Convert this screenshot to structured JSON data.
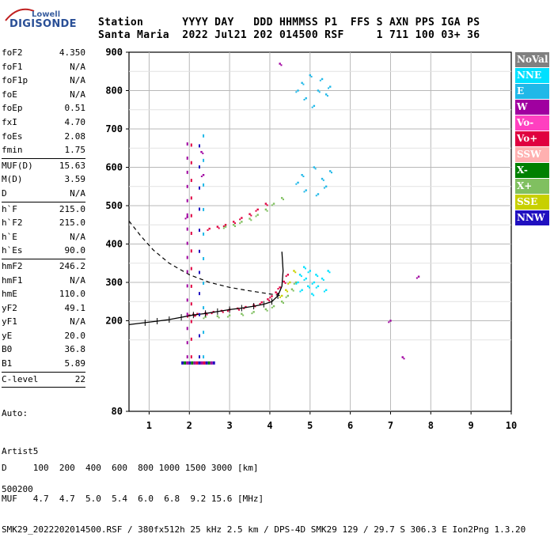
{
  "logo": {
    "line1": "Lowell",
    "line2": "DIGISONDE"
  },
  "header": {
    "line1": "Station      YYYY DAY   DDD HHMMSS P1  FFS S AXN PPS IGA PS",
    "line2": "Santa Maria  2022 Jul21 202 014500 RSF     1 711 100 03+ 36"
  },
  "params": [
    {
      "label": "foF2",
      "value": "4.350"
    },
    {
      "label": "foF1",
      "value": "N/A"
    },
    {
      "label": "foF1p",
      "value": "N/A"
    },
    {
      "label": "foE",
      "value": "N/A"
    },
    {
      "label": "foEp",
      "value": "0.51"
    },
    {
      "label": "fxI",
      "value": "4.70"
    },
    {
      "label": "foEs",
      "value": "2.08"
    },
    {
      "label": "fmin",
      "value": "1.75"
    },
    {
      "sep": true
    },
    {
      "label": "MUF(D)",
      "value": "15.63"
    },
    {
      "label": "M(D)",
      "value": "3.59"
    },
    {
      "label": "D",
      "value": "N/A"
    },
    {
      "sep": true
    },
    {
      "label": "h`F",
      "value": "215.0"
    },
    {
      "label": "h`F2",
      "value": "215.0"
    },
    {
      "label": "h`E",
      "value": "N/A"
    },
    {
      "label": "h`Es",
      "value": "90.0"
    },
    {
      "sep": true
    },
    {
      "label": "hmF2",
      "value": "246.2"
    },
    {
      "label": "hmF1",
      "value": "N/A"
    },
    {
      "label": "hmE",
      "value": "110.0"
    },
    {
      "label": "yF2",
      "value": "49.1"
    },
    {
      "label": "yF1",
      "value": "N/A"
    },
    {
      "label": "yE",
      "value": "20.0"
    },
    {
      "label": "B0",
      "value": "36.8"
    },
    {
      "label": "B1",
      "value": "5.89"
    },
    {
      "sep": true
    },
    {
      "label": "C-level",
      "value": "22"
    },
    {
      "sep": true
    }
  ],
  "auto": {
    "line1": "Auto:",
    "line2": "Artist5",
    "line3": "500200"
  },
  "legend": [
    {
      "label": "NoVal",
      "color": "#808080"
    },
    {
      "label": "NNE",
      "color": "#00e0ff"
    },
    {
      "label": "E",
      "color": "#20b8e8"
    },
    {
      "label": "W",
      "color": "#a000a0"
    },
    {
      "label": "Vo-",
      "color": "#ff40c0"
    },
    {
      "label": "Vo+",
      "color": "#e00040"
    },
    {
      "label": "SSW",
      "color": "#ffb0b0"
    },
    {
      "label": "X-",
      "color": "#008000"
    },
    {
      "label": "X+",
      "color": "#80c060"
    },
    {
      "label": "SSE",
      "color": "#c8d000"
    },
    {
      "label": "NNW",
      "color": "#2010c0"
    }
  ],
  "footer": {
    "line1": "D     100  200  400  600  800 1000 1500 3000 [km]",
    "line2": "MUF   4.7  4.7  5.0  5.4  6.0  6.8  9.2 15.6 [MHz]",
    "line3": "SMK29_2022202014500.RSF / 380fx512h 25 kHz 2.5 km / DPS-4D SMK29 129 / 29.7 S 306.3 E Ion2Png 1.3.20"
  },
  "chart_data": {
    "type": "scatter",
    "xlim": [
      0.5,
      10
    ],
    "ylim": [
      80,
      900
    ],
    "xticks": [
      1,
      2,
      3,
      4,
      5,
      6,
      7,
      8,
      9,
      10
    ],
    "yticks": [
      80,
      200,
      300,
      400,
      500,
      600,
      700,
      800,
      900
    ],
    "grid": true,
    "legend_position": "right",
    "profile_curve": {
      "x": [
        4.3,
        4.33,
        4.3,
        4.2,
        4.05,
        3.85,
        3.6,
        3.3,
        3.0,
        2.7,
        2.4,
        2.1,
        1.8,
        1.5,
        1.2,
        0.9,
        0.5
      ],
      "y": [
        380,
        330,
        290,
        265,
        250,
        243,
        238,
        233,
        229,
        224,
        219,
        215,
        209,
        203,
        199,
        195,
        190
      ]
    },
    "traces": [
      {
        "name": "Vo+",
        "color": "#e00040",
        "x": [
          2.0,
          2.1,
          2.2,
          2.4,
          2.6,
          2.8,
          3.0,
          3.2,
          3.4,
          3.6,
          3.8,
          3.95,
          4.05,
          4.15,
          4.25,
          4.35,
          4.45
        ],
        "y": [
          214,
          216,
          218,
          220,
          223,
          226,
          229,
          232,
          236,
          241,
          248,
          256,
          264,
          274,
          287,
          302,
          320
        ]
      },
      {
        "name": "X+",
        "color": "#80c060",
        "x": [
          2.4,
          2.7,
          3.0,
          3.3,
          3.6,
          3.9,
          4.1,
          4.3,
          4.45,
          4.55,
          4.65
        ],
        "y": [
          210,
          212,
          214,
          218,
          223,
          230,
          238,
          250,
          265,
          282,
          300
        ]
      },
      {
        "name": "SSE",
        "color": "#c8d000",
        "x": [
          4.3,
          4.4,
          4.5,
          4.6
        ],
        "y": [
          265,
          280,
          300,
          330
        ]
      },
      {
        "name": "Vo+",
        "color": "#e00040",
        "x": [
          2.5,
          2.7,
          2.9,
          3.1,
          3.3,
          3.5,
          3.7,
          3.9
        ],
        "y": [
          440,
          445,
          450,
          458,
          468,
          478,
          490,
          505
        ]
      },
      {
        "name": "X+",
        "color": "#80c060",
        "x": [
          2.9,
          3.1,
          3.3,
          3.5,
          3.7,
          3.9,
          4.1,
          4.3
        ],
        "y": [
          445,
          450,
          458,
          466,
          476,
          490,
          505,
          520
        ]
      },
      {
        "name": "NNE",
        "color": "#00e0ff",
        "x": [
          4.7,
          4.75,
          4.8,
          4.85,
          4.9,
          4.95,
          5.0,
          5.05,
          5.1,
          5.15,
          5.2,
          5.3,
          5.4,
          5.45
        ],
        "y": [
          300,
          320,
          280,
          340,
          310,
          290,
          330,
          270,
          300,
          320,
          290,
          310,
          280,
          330
        ]
      },
      {
        "name": "E",
        "color": "#20b8e8",
        "x": [
          4.7,
          4.8,
          4.9,
          5.0,
          5.1,
          5.2,
          5.3,
          5.4,
          5.5
        ],
        "y": [
          800,
          820,
          780,
          840,
          760,
          800,
          830,
          790,
          810
        ]
      },
      {
        "name": "E",
        "color": "#20b8e8",
        "x": [
          4.7,
          4.8,
          4.9,
          5.1,
          5.2,
          5.3,
          5.4,
          5.5
        ],
        "y": [
          560,
          580,
          540,
          600,
          530,
          570,
          550,
          590
        ]
      },
      {
        "name": "W",
        "color": "#a000a0",
        "x": [
          1.95,
          2.3,
          2.35,
          4.25,
          7.0,
          7.3,
          7.7
        ],
        "y": [
          470,
          640,
          580,
          870,
          200,
          105,
          315
        ]
      }
    ]
  }
}
